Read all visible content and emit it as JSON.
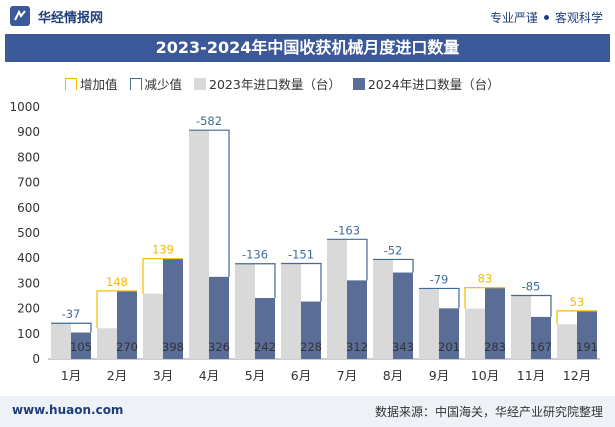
{
  "header": {
    "brand": "华经情报网",
    "tagline_left": "专业严谨",
    "tagline_right": "客观科学"
  },
  "chart_data": {
    "type": "bar",
    "title": "2023-2024年中国收获机械月度进口数量",
    "categories": [
      "1月",
      "2月",
      "3月",
      "4月",
      "5月",
      "6月",
      "7月",
      "8月",
      "9月",
      "10月",
      "11月",
      "12月"
    ],
    "series": [
      {
        "name": "2023年进口数量（台）",
        "color": "#d9d9d9",
        "values": [
          142,
          122,
          259,
          908,
          378,
          379,
          475,
          395,
          280,
          200,
          252,
          138
        ]
      },
      {
        "name": "2024年进口数量（台）",
        "color": "#5a6d96",
        "values": [
          105,
          270,
          398,
          326,
          242,
          228,
          312,
          343,
          201,
          283,
          167,
          191
        ]
      }
    ],
    "changes": [
      -37,
      148,
      139,
      -582,
      -136,
      -151,
      -163,
      -52,
      -79,
      83,
      -85,
      53
    ],
    "legend": {
      "increase": "增加值",
      "decrease": "减少值",
      "s2023": "2023年进口数量（台）",
      "s2024": "2024年进口数量（台）"
    },
    "increase_color": "#f5b800",
    "decrease_color": "#3f6b9a",
    "ylim": [
      0,
      1000
    ],
    "yticks": [
      0,
      100,
      200,
      300,
      400,
      500,
      600,
      700,
      800,
      900,
      1000
    ],
    "legend_position": "top-left",
    "grid": false
  },
  "footer": {
    "url": "www.huaon.com",
    "source": "数据来源：中国海关，华经产业研究院整理"
  }
}
